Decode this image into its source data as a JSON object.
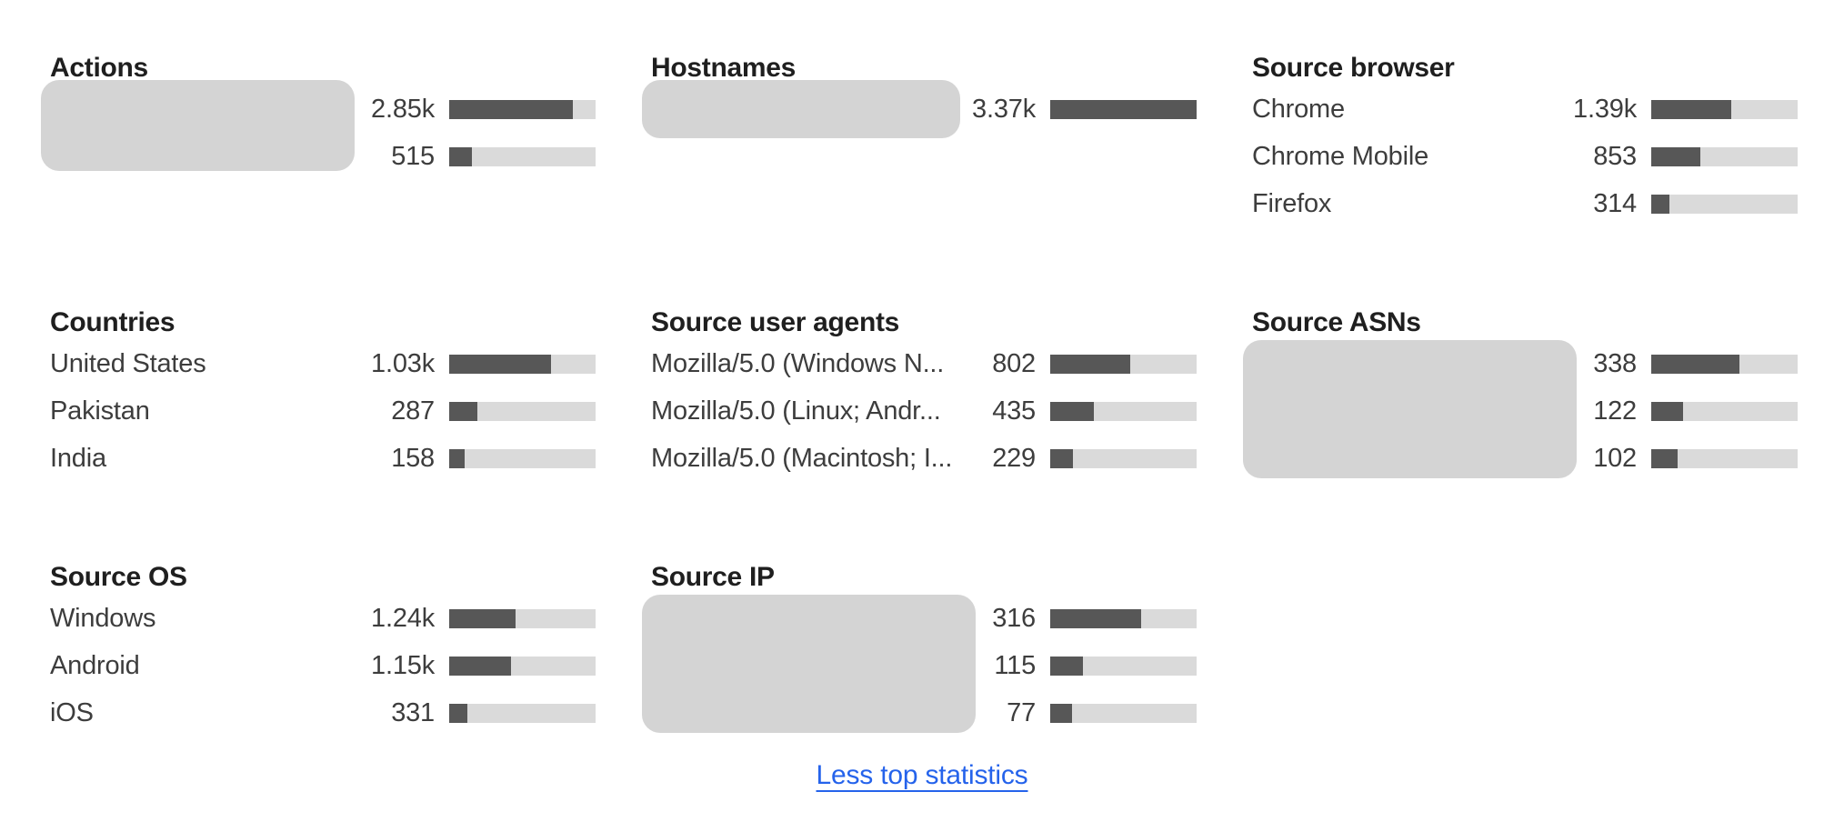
{
  "panel": {
    "sections": [
      {
        "title": "Actions",
        "redacted": true,
        "rows": [
          {
            "label": "",
            "display": "2.85k",
            "value": 2850
          },
          {
            "label": "",
            "display": "515",
            "value": 515
          }
        ]
      },
      {
        "title": "Hostnames",
        "redacted": true,
        "rows": [
          {
            "label": "",
            "display": "3.37k",
            "value": 3370
          }
        ]
      },
      {
        "title": "Source browser",
        "redacted": false,
        "rows": [
          {
            "label": "Chrome",
            "display": "1.39k",
            "value": 1390
          },
          {
            "label": "Chrome Mobile",
            "display": "853",
            "value": 853
          },
          {
            "label": "Firefox",
            "display": "314",
            "value": 314
          }
        ]
      },
      {
        "title": "Countries",
        "redacted": false,
        "rows": [
          {
            "label": "United States",
            "display": "1.03k",
            "value": 1030
          },
          {
            "label": "Pakistan",
            "display": "287",
            "value": 287
          },
          {
            "label": "India",
            "display": "158",
            "value": 158
          }
        ]
      },
      {
        "title": "Source user agents",
        "redacted": false,
        "rows": [
          {
            "label": "Mozilla/5.0 (Windows N...",
            "display": "802",
            "value": 802
          },
          {
            "label": "Mozilla/5.0 (Linux; Andr...",
            "display": "435",
            "value": 435
          },
          {
            "label": "Mozilla/5.0 (Macintosh; I...",
            "display": "229",
            "value": 229
          }
        ]
      },
      {
        "title": "Source ASNs",
        "redacted": true,
        "rows": [
          {
            "label": "",
            "display": "338",
            "value": 338
          },
          {
            "label": "",
            "display": "122",
            "value": 122
          },
          {
            "label": "",
            "display": "102",
            "value": 102
          }
        ]
      },
      {
        "title": "Source OS",
        "redacted": false,
        "rows": [
          {
            "label": "Windows",
            "display": "1.24k",
            "value": 1240
          },
          {
            "label": "Android",
            "display": "1.15k",
            "value": 1150
          },
          {
            "label": "iOS",
            "display": "331",
            "value": 331
          }
        ]
      },
      {
        "title": "Source IP",
        "redacted": true,
        "rows": [
          {
            "label": "",
            "display": "316",
            "value": 316
          },
          {
            "label": "",
            "display": "115",
            "value": 115
          },
          {
            "label": "",
            "display": "77",
            "value": 77
          }
        ]
      }
    ],
    "footer_link_label": "Less top statistics"
  },
  "colors": {
    "bar_fill": "#575757",
    "bar_track": "#dadada",
    "redaction_box": "#d4d4d4",
    "heading_text": "#1f1f1f",
    "body_text": "#3d3d3d",
    "link_blue": "#2563eb",
    "background": "#ffffff"
  },
  "chart_data": [
    {
      "type": "bar",
      "title": "Actions",
      "categories": [
        "",
        ""
      ],
      "values": [
        2850,
        515
      ],
      "values_display": [
        "2.85k",
        "515"
      ],
      "labels_redacted": true
    },
    {
      "type": "bar",
      "title": "Hostnames",
      "categories": [
        ""
      ],
      "values": [
        3370
      ],
      "values_display": [
        "3.37k"
      ],
      "labels_redacted": true
    },
    {
      "type": "bar",
      "title": "Source browser",
      "categories": [
        "Chrome",
        "Chrome Mobile",
        "Firefox"
      ],
      "values": [
        1390,
        853,
        314
      ],
      "values_display": [
        "1.39k",
        "853",
        "314"
      ],
      "labels_redacted": false
    },
    {
      "type": "bar",
      "title": "Countries",
      "categories": [
        "United States",
        "Pakistan",
        "India"
      ],
      "values": [
        1030,
        287,
        158
      ],
      "values_display": [
        "1.03k",
        "287",
        "158"
      ],
      "labels_redacted": false
    },
    {
      "type": "bar",
      "title": "Source user agents",
      "categories": [
        "Mozilla/5.0 (Windows N...",
        "Mozilla/5.0 (Linux; Andr...",
        "Mozilla/5.0 (Macintosh; I..."
      ],
      "values": [
        802,
        435,
        229
      ],
      "values_display": [
        "802",
        "435",
        "229"
      ],
      "labels_redacted": false
    },
    {
      "type": "bar",
      "title": "Source ASNs",
      "categories": [
        "",
        "",
        ""
      ],
      "values": [
        338,
        122,
        102
      ],
      "values_display": [
        "338",
        "122",
        "102"
      ],
      "labels_redacted": true
    },
    {
      "type": "bar",
      "title": "Source OS",
      "categories": [
        "Windows",
        "Android",
        "iOS"
      ],
      "values": [
        1240,
        1150,
        331
      ],
      "values_display": [
        "1.24k",
        "1.15k",
        "331"
      ],
      "labels_redacted": false
    },
    {
      "type": "bar",
      "title": "Source IP",
      "categories": [
        "",
        "",
        ""
      ],
      "values": [
        316,
        115,
        77
      ],
      "values_display": [
        "316",
        "115",
        "77"
      ],
      "labels_redacted": true
    }
  ]
}
